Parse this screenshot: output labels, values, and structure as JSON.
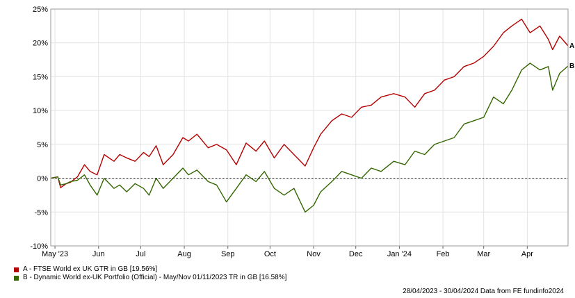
{
  "chart_data": {
    "type": "line",
    "title": "",
    "xlabel": "",
    "ylabel": "",
    "y_unit": "%",
    "ylim": [
      -10,
      25
    ],
    "y_ticks": [
      "25%",
      "20%",
      "15%",
      "10%",
      "5%",
      "0%",
      "-5%",
      "-10%"
    ],
    "y_tick_values": [
      25,
      20,
      15,
      10,
      5,
      0,
      -5,
      -10
    ],
    "x_range": [
      "2023-04-28",
      "2024-04-30"
    ],
    "x_ticks": [
      {
        "label": "May '23",
        "date": "2023-05-01"
      },
      {
        "label": "Jun",
        "date": "2023-06-01"
      },
      {
        "label": "Jul",
        "date": "2023-07-01"
      },
      {
        "label": "Aug",
        "date": "2023-08-01"
      },
      {
        "label": "Sep",
        "date": "2023-09-01"
      },
      {
        "label": "Oct",
        "date": "2023-10-01"
      },
      {
        "label": "Nov",
        "date": "2023-11-01"
      },
      {
        "label": "Dec",
        "date": "2023-12-01"
      },
      {
        "label": "Jan '24",
        "date": "2024-01-01"
      },
      {
        "label": "Feb",
        "date": "2024-02-01"
      },
      {
        "label": "Mar",
        "date": "2024-03-01"
      },
      {
        "label": "Apr",
        "date": "2024-04-01"
      }
    ],
    "grid": true,
    "legend_position": "bottom-left",
    "series": [
      {
        "id": "A",
        "name": "A - FTSE World ex UK GTR in GB [19.56%]",
        "end_label": "A",
        "color": "#b30000",
        "x": [
          "2023-04-28",
          "2023-05-03",
          "2023-05-05",
          "2023-05-09",
          "2023-05-12",
          "2023-05-17",
          "2023-05-22",
          "2023-05-26",
          "2023-05-31",
          "2023-06-05",
          "2023-06-12",
          "2023-06-16",
          "2023-06-21",
          "2023-06-27",
          "2023-07-03",
          "2023-07-07",
          "2023-07-12",
          "2023-07-17",
          "2023-07-24",
          "2023-07-31",
          "2023-08-04",
          "2023-08-10",
          "2023-08-18",
          "2023-08-24",
          "2023-08-31",
          "2023-09-07",
          "2023-09-14",
          "2023-09-21",
          "2023-09-27",
          "2023-10-04",
          "2023-10-11",
          "2023-10-18",
          "2023-10-26",
          "2023-11-01",
          "2023-11-06",
          "2023-11-14",
          "2023-11-21",
          "2023-11-28",
          "2023-12-05",
          "2023-12-12",
          "2023-12-19",
          "2023-12-28",
          "2024-01-05",
          "2024-01-12",
          "2024-01-19",
          "2024-01-26",
          "2024-02-02",
          "2024-02-09",
          "2024-02-16",
          "2024-02-23",
          "2024-03-01",
          "2024-03-08",
          "2024-03-15",
          "2024-03-21",
          "2024-03-28",
          "2024-04-03",
          "2024-04-10",
          "2024-04-16",
          "2024-04-19",
          "2024-04-24",
          "2024-04-30"
        ],
        "values": [
          0,
          0.2,
          -1.4,
          -0.8,
          -0.6,
          0.2,
          2.0,
          1.0,
          0.5,
          3.5,
          2.5,
          3.5,
          3.0,
          2.5,
          3.8,
          3.2,
          4.8,
          2.0,
          3.5,
          6.0,
          5.5,
          6.5,
          4.5,
          5.0,
          4.2,
          2.0,
          5.2,
          4.0,
          5.5,
          3.0,
          5.0,
          3.5,
          1.8,
          4.5,
          6.5,
          8.5,
          9.5,
          9.0,
          10.5,
          10.8,
          12.0,
          12.5,
          12.0,
          10.5,
          12.5,
          13.0,
          14.5,
          15.0,
          16.5,
          17.0,
          18.0,
          19.5,
          21.5,
          22.5,
          23.5,
          21.5,
          22.5,
          20.5,
          19.0,
          21.0,
          19.56
        ]
      },
      {
        "id": "B",
        "name": "B - Dynamic World ex-UK Portfolio (Official) - May/Nov 01/11/2023 TR in GB [16.58%]",
        "end_label": "B",
        "color": "#336600",
        "x": [
          "2023-04-28",
          "2023-05-03",
          "2023-05-05",
          "2023-05-09",
          "2023-05-12",
          "2023-05-17",
          "2023-05-22",
          "2023-05-26",
          "2023-05-31",
          "2023-06-05",
          "2023-06-12",
          "2023-06-16",
          "2023-06-21",
          "2023-06-27",
          "2023-07-03",
          "2023-07-07",
          "2023-07-12",
          "2023-07-17",
          "2023-07-24",
          "2023-07-31",
          "2023-08-04",
          "2023-08-10",
          "2023-08-18",
          "2023-08-24",
          "2023-08-31",
          "2023-09-07",
          "2023-09-14",
          "2023-09-21",
          "2023-09-27",
          "2023-10-04",
          "2023-10-11",
          "2023-10-18",
          "2023-10-26",
          "2023-11-01",
          "2023-11-06",
          "2023-11-14",
          "2023-11-21",
          "2023-11-28",
          "2023-12-05",
          "2023-12-12",
          "2023-12-19",
          "2023-12-28",
          "2024-01-05",
          "2024-01-12",
          "2024-01-19",
          "2024-01-26",
          "2024-02-02",
          "2024-02-09",
          "2024-02-16",
          "2024-02-23",
          "2024-03-01",
          "2024-03-08",
          "2024-03-15",
          "2024-03-21",
          "2024-03-28",
          "2024-04-03",
          "2024-04-10",
          "2024-04-16",
          "2024-04-19",
          "2024-04-24",
          "2024-04-30"
        ],
        "values": [
          0,
          0.2,
          -1.0,
          -0.8,
          -0.5,
          -0.3,
          0.5,
          -1.0,
          -2.5,
          0,
          -1.5,
          -1.0,
          -2.0,
          -0.8,
          -1.5,
          -2.5,
          0,
          -1.5,
          0,
          1.5,
          0.5,
          1.2,
          -0.5,
          -1.0,
          -3.5,
          -1.5,
          0.5,
          -0.5,
          1.0,
          -1.5,
          -2.5,
          -1.5,
          -5.0,
          -4.0,
          -2.0,
          -0.5,
          1.0,
          0.5,
          0,
          1.5,
          1.0,
          2.5,
          2.0,
          4.0,
          3.5,
          5.0,
          5.5,
          6.0,
          8.0,
          8.5,
          9.0,
          12.0,
          11.0,
          13.0,
          16.0,
          17.0,
          16.0,
          16.5,
          13.0,
          15.5,
          16.58
        ]
      }
    ]
  },
  "legend": [
    {
      "text": "A - FTSE World ex UK GTR in GB [19.56%]",
      "color": "#b30000"
    },
    {
      "text": "B - Dynamic World ex-UK Portfolio (Official) - May/Nov 01/11/2023 TR in GB [16.58%]",
      "color": "#336600"
    }
  ],
  "footer": {
    "text": "28/04/2023 - 30/04/2024 Data from FE fundinfo2024"
  }
}
